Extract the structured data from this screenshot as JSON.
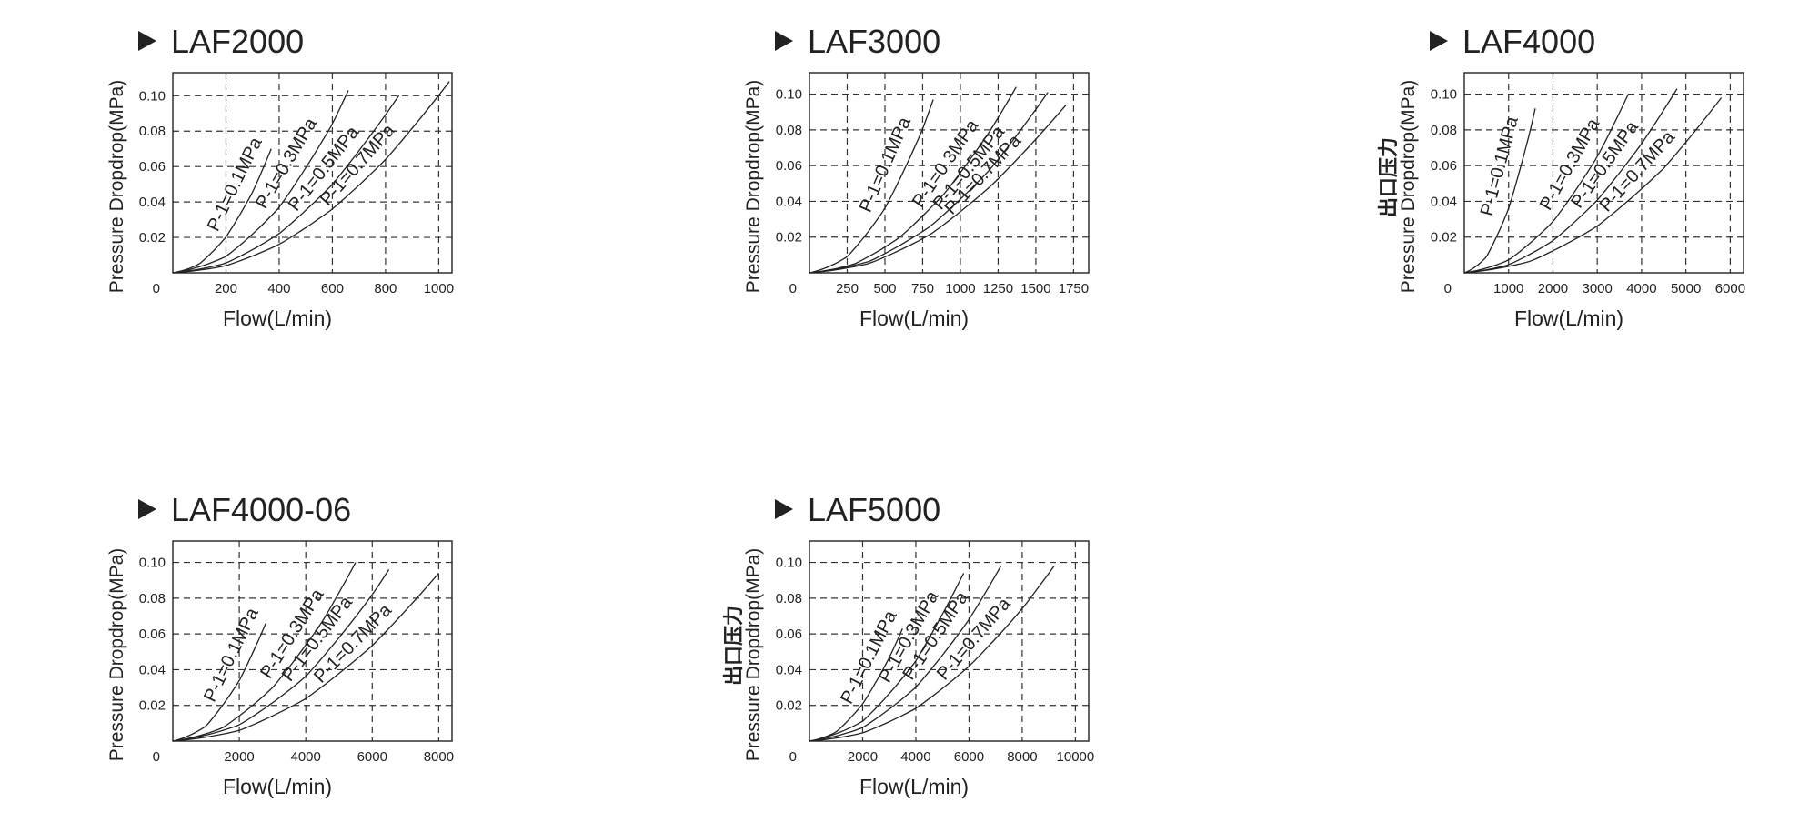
{
  "chart_data": [
    {
      "type": "line",
      "title": "LAF2000",
      "ylabel": "Pressure Dropdrop(MPa)",
      "ylabel_cn": "",
      "xlabel": "Flow(L/min)",
      "xlim": [
        0,
        1050
      ],
      "ylim": [
        0,
        0.113
      ],
      "xticks": [
        200,
        400,
        600,
        800,
        1000
      ],
      "xtick_labels": [
        "200",
        "400",
        "600",
        "800",
        "1000"
      ],
      "yticks": [
        0.02,
        0.04,
        0.06,
        0.08,
        0.1
      ],
      "ytick_labels": [
        "0.02",
        "0.04",
        "0.06",
        "0.08",
        "0.10"
      ],
      "origin_label": "0",
      "grid": true,
      "series": [
        {
          "name": "P-1=0.1MPa",
          "x": [
            0,
            100,
            200,
            300,
            370
          ],
          "y": [
            0,
            0.005,
            0.02,
            0.045,
            0.07
          ]
        },
        {
          "name": "P-1=0.3MPa",
          "x": [
            0,
            200,
            400,
            600,
            660
          ],
          "y": [
            0,
            0.009,
            0.036,
            0.083,
            0.103
          ]
        },
        {
          "name": "P-1=0.5MPa",
          "x": [
            0,
            200,
            400,
            600,
            850
          ],
          "y": [
            0,
            0.0055,
            0.022,
            0.05,
            0.1
          ]
        },
        {
          "name": "P-1=0.7MPa",
          "x": [
            0,
            200,
            400,
            600,
            800,
            1040
          ],
          "y": [
            0,
            0.004,
            0.016,
            0.036,
            0.064,
            0.108
          ]
        }
      ]
    },
    {
      "type": "line",
      "title": "LAF3000",
      "ylabel": "Pressure Dropdrop(MPa)",
      "ylabel_cn": "",
      "xlabel": "Flow(L/min)",
      "xlim": [
        0,
        1850
      ],
      "ylim": [
        0,
        0.112
      ],
      "xticks": [
        250,
        500,
        750,
        1000,
        1250,
        1500,
        1750
      ],
      "xtick_labels": [
        "250",
        "500",
        "750",
        "1000",
        "1250",
        "1500",
        "1750"
      ],
      "yticks": [
        0.02,
        0.04,
        0.06,
        0.08,
        0.1
      ],
      "ytick_labels": [
        "0.02",
        "0.04",
        "0.06",
        "0.08",
        "0.10"
      ],
      "origin_label": "0",
      "grid": true,
      "series": [
        {
          "name": "P-1=0.1MPa",
          "x": [
            0,
            250,
            500,
            750,
            820
          ],
          "y": [
            0,
            0.009,
            0.036,
            0.08,
            0.097
          ]
        },
        {
          "name": "P-1=0.3MPa",
          "x": [
            0,
            300,
            600,
            900,
            1200,
            1370
          ],
          "y": [
            0,
            0.005,
            0.02,
            0.045,
            0.08,
            0.104
          ]
        },
        {
          "name": "P-1=0.5MPa",
          "x": [
            0,
            400,
            800,
            1200,
            1580
          ],
          "y": [
            0,
            0.0065,
            0.026,
            0.058,
            0.101
          ]
        },
        {
          "name": "P-1=0.7MPa",
          "x": [
            0,
            400,
            800,
            1200,
            1700
          ],
          "y": [
            0,
            0.0055,
            0.022,
            0.05,
            0.094
          ]
        }
      ]
    },
    {
      "type": "line",
      "title": "LAF4000",
      "ylabel": "Pressure Dropdrop(MPa)",
      "ylabel_cn": "出口压力",
      "xlabel": "Flow(L/min)",
      "xlim": [
        0,
        6300
      ],
      "ylim": [
        0,
        0.112
      ],
      "xticks": [
        1000,
        2000,
        3000,
        4000,
        5000,
        6000
      ],
      "xtick_labels": [
        "1000",
        "2000",
        "3000",
        "4000",
        "5000",
        "6000"
      ],
      "yticks": [
        0.02,
        0.04,
        0.06,
        0.08,
        0.1
      ],
      "ytick_labels": [
        "0.02",
        "0.04",
        "0.06",
        "0.08",
        "0.10"
      ],
      "origin_label": "0",
      "grid": true,
      "series": [
        {
          "name": "P-1=0.1MPa",
          "x": [
            0,
            500,
            1000,
            1500,
            1600
          ],
          "y": [
            0,
            0.009,
            0.036,
            0.081,
            0.092
          ]
        },
        {
          "name": "P-1=0.3MPa",
          "x": [
            0,
            1000,
            2000,
            3000,
            3700
          ],
          "y": [
            0,
            0.007,
            0.028,
            0.064,
            0.1
          ]
        },
        {
          "name": "P-1=0.5MPa",
          "x": [
            0,
            1000,
            2000,
            3000,
            4000,
            4800
          ],
          "y": [
            0,
            0.0045,
            0.018,
            0.041,
            0.073,
            0.103
          ]
        },
        {
          "name": "P-1=0.7MPa",
          "x": [
            0,
            1500,
            3000,
            4500,
            5800
          ],
          "y": [
            0,
            0.0065,
            0.026,
            0.058,
            0.098
          ]
        }
      ]
    },
    {
      "type": "line",
      "title": "LAF4000-06",
      "ylabel": "Pressure Dropdrop(MPa)",
      "ylabel_cn": "",
      "xlabel": "Flow(L/min)",
      "xlim": [
        0,
        8400
      ],
      "ylim": [
        0,
        0.112
      ],
      "xticks": [
        2000,
        4000,
        6000,
        8000
      ],
      "xtick_labels": [
        "2000",
        "4000",
        "6000",
        "8000"
      ],
      "yticks": [
        0.02,
        0.04,
        0.06,
        0.08,
        0.1
      ],
      "ytick_labels": [
        "0.02",
        "0.04",
        "0.06",
        "0.08",
        "0.10"
      ],
      "origin_label": "0",
      "grid": true,
      "series": [
        {
          "name": "P-1=0.1MPa",
          "x": [
            0,
            1000,
            2000,
            2800
          ],
          "y": [
            0,
            0.0085,
            0.034,
            0.066
          ]
        },
        {
          "name": "P-1=0.3MPa",
          "x": [
            0,
            1500,
            3000,
            4500,
            5500
          ],
          "y": [
            0,
            0.0075,
            0.03,
            0.067,
            0.1
          ]
        },
        {
          "name": "P-1=0.5MPa",
          "x": [
            0,
            2000,
            4000,
            6000,
            6500
          ],
          "y": [
            0,
            0.009,
            0.036,
            0.082,
            0.096
          ]
        },
        {
          "name": "P-1=0.7MPa",
          "x": [
            0,
            2000,
            4000,
            6000,
            8000
          ],
          "y": [
            0,
            0.006,
            0.024,
            0.054,
            0.094
          ]
        }
      ]
    },
    {
      "type": "line",
      "title": "LAF5000",
      "ylabel": "Pressure Dropdrop(MPa)",
      "ylabel_cn": "出口压力",
      "xlabel": "Flow(L/min)",
      "xlim": [
        0,
        10500
      ],
      "ylim": [
        0,
        0.112
      ],
      "xticks": [
        2000,
        4000,
        6000,
        8000,
        10000
      ],
      "xtick_labels": [
        "2000",
        "4000",
        "6000",
        "8000",
        "10000"
      ],
      "yticks": [
        0.02,
        0.04,
        0.06,
        0.08,
        0.1
      ],
      "ytick_labels": [
        "0.02",
        "0.04",
        "0.06",
        "0.08",
        "0.10"
      ],
      "origin_label": "0",
      "grid": true,
      "series": [
        {
          "name": "P-1=0.1MPa",
          "x": [
            0,
            1000,
            2000,
            3000,
            3500
          ],
          "y": [
            0,
            0.005,
            0.021,
            0.047,
            0.063
          ]
        },
        {
          "name": "P-1=0.3MPa",
          "x": [
            0,
            2000,
            4000,
            5800
          ],
          "y": [
            0,
            0.011,
            0.045,
            0.094
          ]
        },
        {
          "name": "P-1=0.5MPa",
          "x": [
            0,
            2000,
            4000,
            6000,
            7200
          ],
          "y": [
            0,
            0.0075,
            0.03,
            0.068,
            0.098
          ]
        },
        {
          "name": "P-1=0.7MPa",
          "x": [
            0,
            2000,
            4000,
            6000,
            8000,
            9200
          ],
          "y": [
            0,
            0.0045,
            0.018,
            0.042,
            0.074,
            0.098
          ]
        }
      ]
    }
  ]
}
